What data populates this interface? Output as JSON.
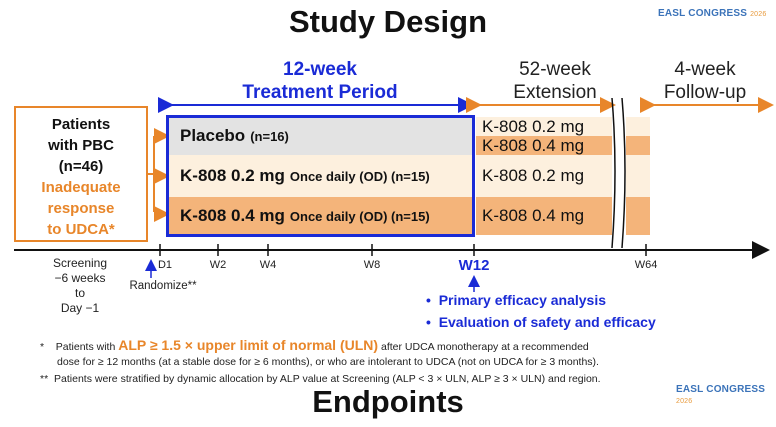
{
  "title": "Study Design",
  "congress": {
    "name": "EASL CONGRESS",
    "year": "2026"
  },
  "phases": {
    "treatment_line1": "12-week",
    "treatment_line2": "Treatment Period",
    "extension_line1": "52-week",
    "extension_line2": "Extension",
    "followup_line1": "4-week",
    "followup_line2": "Follow-up"
  },
  "patients": {
    "line1": "Patients",
    "line2": "with PBC",
    "line3": "(n=46)",
    "line4": "Inadequate",
    "line5": "response",
    "line6": "to UDCA*"
  },
  "arms": [
    {
      "name": "Placebo",
      "detail": "(n=16)"
    },
    {
      "name": "K-808 0.2 mg",
      "detail": "Once daily (OD) (n=15)"
    },
    {
      "name": "K-808 0.4 mg",
      "detail": "Once daily (OD) (n=15)"
    }
  ],
  "extension": {
    "placebo_a": "K-808 0.2 mg",
    "placebo_b": "K-808 0.4 mg",
    "arm2": "K-808 0.2 mg",
    "arm3": "K-808 0.4 mg"
  },
  "timeline": {
    "screening": [
      "Screening",
      "−6 weeks",
      "to",
      "Day −1"
    ],
    "d1": "D1",
    "w2": "W2",
    "w4": "W4",
    "w8": "W8",
    "w12": "W12",
    "w64": "W64",
    "randomize": "Randomize**"
  },
  "bullets": [
    "Primary efficacy analysis",
    "Evaluation of safety and efficacy"
  ],
  "footnotes": {
    "f1_mark": "*",
    "f1_a": "Patients with",
    "f1_em": "ALP ≥ 1.5 × upper limit of normal (ULN)",
    "f1_b": "after UDCA monotherapy at a recommended",
    "f1_c": "dose for ≥ 12 months (at a stable dose for ≥ 6 months), or who are intolerant to UDCA (not on UDCA for ≥ 3 months).",
    "f2_mark": "**",
    "f2": "Patients were stratified by dynamic allocation by ALP value at Screening (ALP < 3 × ULN, ALP ≥ 3 × ULN) and region."
  },
  "endpoints": "Endpoints",
  "colors": {
    "blue": "#1a2bd6",
    "orange": "#e8862a",
    "light_orange": "#fdebd3",
    "mid_orange": "#f4b47a",
    "placebo_gray": "#e3e3e3"
  }
}
